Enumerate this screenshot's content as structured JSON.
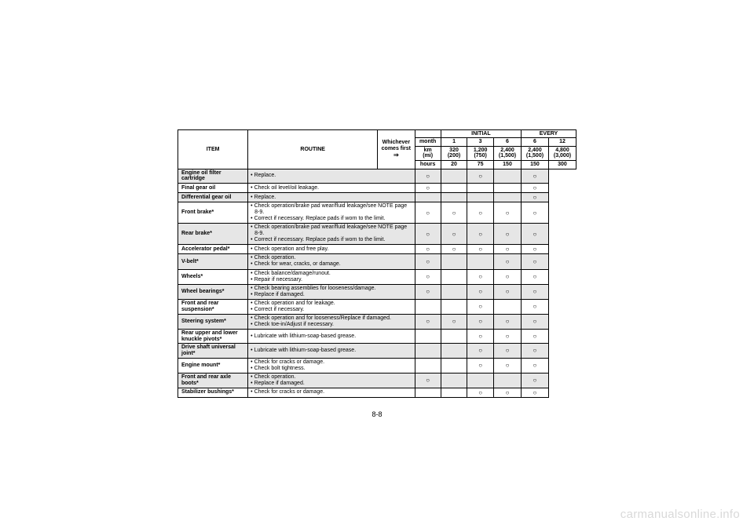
{
  "header": {
    "item": "ITEM",
    "routine": "ROUTINE",
    "whichever": "Whichever\ncomes first",
    "initial": "INITIAL",
    "every": "EVERY",
    "units": {
      "month": "month",
      "km": "km\n(mi)",
      "hours": "hours"
    },
    "months": [
      "1",
      "3",
      "6",
      "6",
      "12"
    ],
    "km": [
      "320\n(200)",
      "1,200\n(750)",
      "2,400\n(1,500)",
      "2,400\n(1,500)",
      "4,800\n(3,000)"
    ],
    "hours": [
      "20",
      "75",
      "150",
      "150",
      "300"
    ]
  },
  "rows": [
    {
      "shade": true,
      "item": "Engine oil filter cartridge",
      "routine": [
        "Replace."
      ],
      "marks": [
        "○",
        "",
        "○",
        "",
        "○"
      ]
    },
    {
      "shade": false,
      "item": "Final gear oil",
      "routine": [
        "Check oil level/oil leakage."
      ],
      "marks": [
        "○",
        "",
        "",
        "",
        "○"
      ]
    },
    {
      "shade": true,
      "item": "Differential gear oil",
      "routine": [
        "Replace."
      ],
      "marks": [
        "",
        "",
        "",
        "",
        "○"
      ]
    },
    {
      "shade": false,
      "item": "Front brake*",
      "routine": [
        "Check operation/brake pad wear/fluid leakage/see NOTE page 8-9.",
        "Correct if necessary. Replace pads if worn to the limit."
      ],
      "marks": [
        "○",
        "○",
        "○",
        "○",
        "○"
      ]
    },
    {
      "shade": true,
      "item": "Rear brake*",
      "routine": [
        "Check operation/brake pad wear/fluid leakage/see NOTE page 8-9.",
        "Correct if necessary. Replace pads if worn to the limit."
      ],
      "marks": [
        "○",
        "○",
        "○",
        "○",
        "○"
      ]
    },
    {
      "shade": false,
      "item": "Accelerator pedal*",
      "routine": [
        "Check operation and free play."
      ],
      "marks": [
        "○",
        "○",
        "○",
        "○",
        "○"
      ]
    },
    {
      "shade": true,
      "item": "V-belt*",
      "routine": [
        "Check operation.",
        "Check for wear, cracks, or damage."
      ],
      "marks": [
        "○",
        "",
        "",
        "○",
        "○"
      ]
    },
    {
      "shade": false,
      "item": "Wheels*",
      "routine": [
        "Check balance/damage/runout.",
        "Repair if necessary."
      ],
      "marks": [
        "○",
        "",
        "○",
        "○",
        "○"
      ]
    },
    {
      "shade": true,
      "item": "Wheel bearings*",
      "routine": [
        "Check bearing assemblies for looseness/damage.",
        "Replace if damaged."
      ],
      "marks": [
        "○",
        "",
        "○",
        "○",
        "○"
      ]
    },
    {
      "shade": false,
      "item": "Front and rear suspension*",
      "routine": [
        "Check operation and for leakage.",
        "Correct if necessary."
      ],
      "marks": [
        "",
        "",
        "○",
        "",
        "○"
      ]
    },
    {
      "shade": true,
      "item": "Steering system*",
      "routine": [
        "Check operation and for looseness/Replace if damaged.",
        "Check toe-in/Adjust if necessary."
      ],
      "marks": [
        "○",
        "○",
        "○",
        "○",
        "○"
      ]
    },
    {
      "shade": false,
      "item": "Rear upper and lower knuckle pivots*",
      "routine": [
        "Lubricate with lithium-soap-based grease."
      ],
      "marks": [
        "",
        "",
        "○",
        "○",
        "○"
      ]
    },
    {
      "shade": true,
      "item": "Drive shaft universal joint*",
      "routine": [
        "Lubricate with lithium-soap-based grease."
      ],
      "marks": [
        "",
        "",
        "○",
        "○",
        "○"
      ]
    },
    {
      "shade": false,
      "item": "Engine mount*",
      "routine": [
        "Check for cracks or damage.",
        "Check bolt tightness."
      ],
      "marks": [
        "",
        "",
        "○",
        "○",
        "○"
      ]
    },
    {
      "shade": true,
      "item": "Front and rear axle boots*",
      "routine": [
        "Check operation.",
        "Replace if damaged."
      ],
      "marks": [
        "○",
        "",
        "",
        "",
        "○"
      ]
    },
    {
      "shade": false,
      "item": "Stabilizer bushings*",
      "routine": [
        "Check for cracks or damage."
      ],
      "marks": [
        "",
        "",
        "○",
        "○",
        "○"
      ]
    }
  ],
  "footer": {
    "page_num": "8-8",
    "watermark": "carmanualsonline.info"
  }
}
